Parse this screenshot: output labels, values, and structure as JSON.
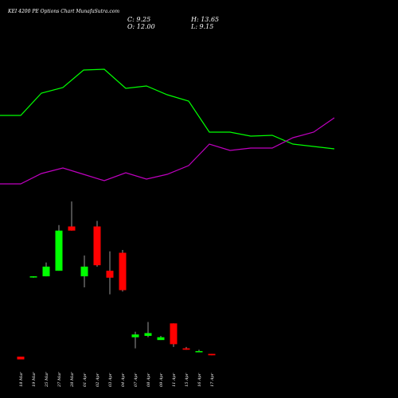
{
  "header": {
    "title": "KEI 4200  PE Options  Chart MunafaSutra.com",
    "close_label": "C: 9.25",
    "high_label": "H: 13.65",
    "open_label": "O: 12.00",
    "low_label": "L: 9.15"
  },
  "colors": {
    "background": "#000000",
    "up": "#00ff00",
    "down": "#ff0000",
    "line_green": "#00ff00",
    "line_magenta": "#c000c0",
    "wick": "#ffffff"
  },
  "chart_data": {
    "type": "candlestick",
    "categories": [
      "18 Mar",
      "19 Mar",
      "25 Mar",
      "27 Mar",
      "28 Mar",
      "01 Apr",
      "02 Apr",
      "03 Apr",
      "04 Apr",
      "07 Apr",
      "08 Apr",
      "09 Apr",
      "11 Apr",
      "15 Apr",
      "16 Apr",
      "17 Apr"
    ],
    "candles": [
      {
        "o": 0.4,
        "h": 0.4,
        "l": 0.2,
        "c": 0.2,
        "dir": "down"
      },
      {
        "o": 6.2,
        "h": 6.2,
        "l": 6.1,
        "c": 6.2,
        "dir": "up"
      },
      {
        "o": 6.2,
        "h": 7.2,
        "l": 6.2,
        "c": 6.9,
        "dir": "up"
      },
      {
        "o": 6.6,
        "h": 9.9,
        "l": 6.6,
        "c": 9.5,
        "dir": "up"
      },
      {
        "o": 9.8,
        "h": 11.6,
        "l": 9.5,
        "c": 9.5,
        "dir": "down"
      },
      {
        "o": 6.2,
        "h": 7.7,
        "l": 5.4,
        "c": 6.9,
        "dir": "up"
      },
      {
        "o": 9.8,
        "h": 10.2,
        "l": 6.9,
        "c": 7.0,
        "dir": "down"
      },
      {
        "o": 6.6,
        "h": 8.0,
        "l": 4.9,
        "c": 6.1,
        "dir": "down"
      },
      {
        "o": 7.9,
        "h": 8.1,
        "l": 5.1,
        "c": 5.2,
        "dir": "down"
      },
      {
        "o": 1.8,
        "h": 2.2,
        "l": 1.0,
        "c": 2.0,
        "dir": "up"
      },
      {
        "o": 1.9,
        "h": 2.9,
        "l": 1.8,
        "c": 2.1,
        "dir": "up"
      },
      {
        "o": 1.6,
        "h": 1.9,
        "l": 1.6,
        "c": 1.8,
        "dir": "up"
      },
      {
        "o": 2.8,
        "h": 2.8,
        "l": 1.1,
        "c": 1.3,
        "dir": "down"
      },
      {
        "o": 1.0,
        "h": 1.1,
        "l": 0.9,
        "c": 0.9,
        "dir": "down"
      },
      {
        "o": 0.8,
        "h": 0.9,
        "l": 0.8,
        "c": 0.8,
        "dir": "up"
      },
      {
        "o": 0.6,
        "h": 0.6,
        "l": 0.5,
        "c": 0.5,
        "dir": "down"
      }
    ],
    "green_line": [
      145,
      145,
      117,
      110,
      88,
      87,
      111,
      108,
      119,
      127,
      166,
      166,
      171,
      170,
      181,
      184,
      187
    ],
    "magenta_line": [
      231,
      231,
      218,
      211,
      219,
      227,
      217,
      225,
      219,
      208,
      181,
      189,
      186,
      186,
      173,
      166,
      148
    ]
  }
}
